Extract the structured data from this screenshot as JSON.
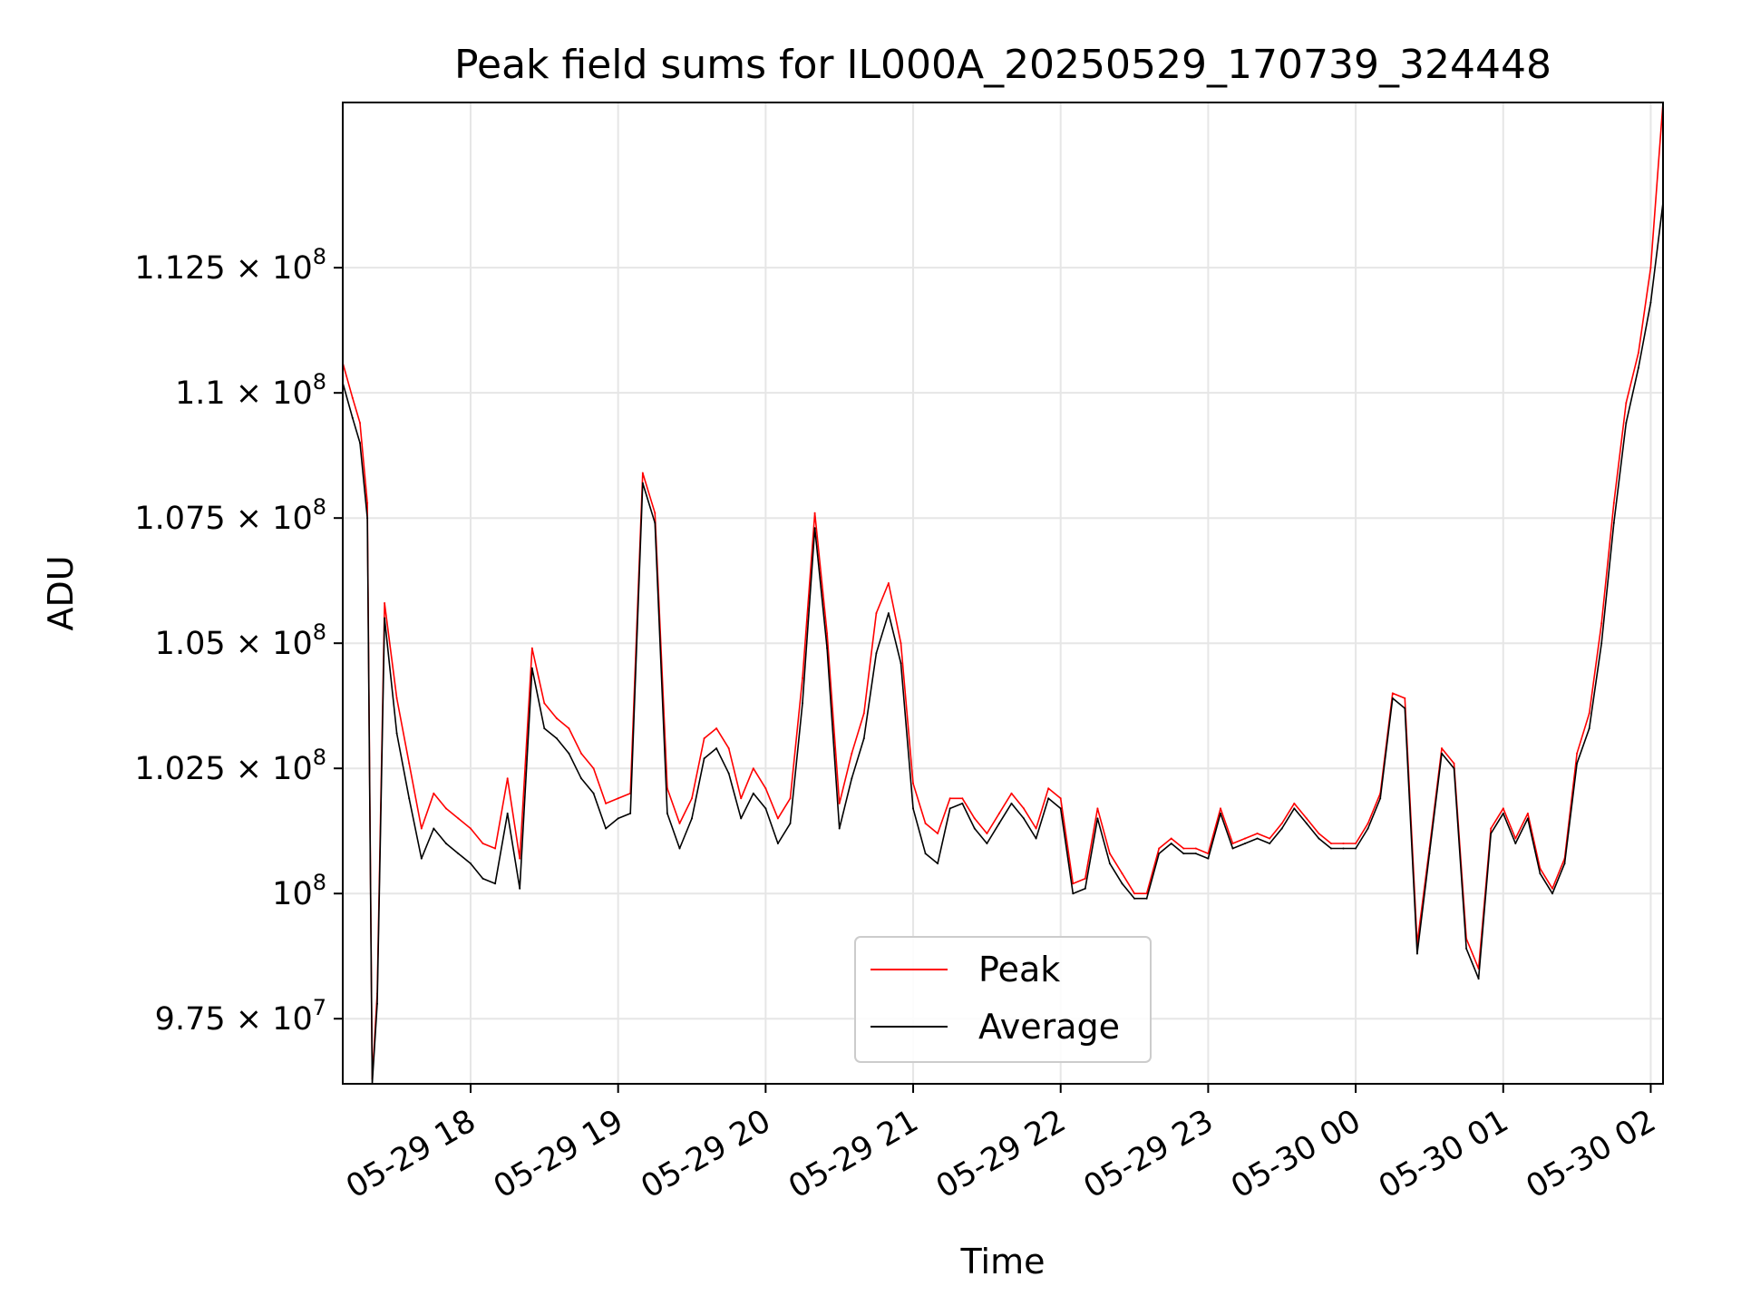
{
  "chart_data": {
    "type": "line",
    "title": "Peak field sums for IL000A_20250529_170739_324448",
    "xlabel": "Time",
    "ylabel": "ADU",
    "x_type": "datetime",
    "xlim": [
      "2025-05-29 17:08",
      "2025-05-30 02:05"
    ],
    "ylim": [
      96200000,
      115800000
    ],
    "x_ticks": [
      {
        "value": "2025-05-29 18:00",
        "label": "05-29 18"
      },
      {
        "value": "2025-05-29 19:00",
        "label": "05-29 19"
      },
      {
        "value": "2025-05-29 20:00",
        "label": "05-29 20"
      },
      {
        "value": "2025-05-29 21:00",
        "label": "05-29 21"
      },
      {
        "value": "2025-05-29 22:00",
        "label": "05-29 22"
      },
      {
        "value": "2025-05-29 23:00",
        "label": "05-29 23"
      },
      {
        "value": "2025-05-30 00:00",
        "label": "05-30 00"
      },
      {
        "value": "2025-05-30 01:00",
        "label": "05-30 01"
      },
      {
        "value": "2025-05-30 02:00",
        "label": "05-30 02"
      }
    ],
    "y_ticks": [
      {
        "value": 97500000,
        "mantissa": "9.75",
        "exp": "7"
      },
      {
        "value": 100000000,
        "mantissa": "",
        "exp": "8"
      },
      {
        "value": 102500000,
        "mantissa": "1.025",
        "exp": "8"
      },
      {
        "value": 105000000,
        "mantissa": "1.05",
        "exp": "8"
      },
      {
        "value": 107500000,
        "mantissa": "1.075",
        "exp": "8"
      },
      {
        "value": 110000000,
        "mantissa": "1.1",
        "exp": "8"
      },
      {
        "value": 112500000,
        "mantissa": "1.125",
        "exp": "8"
      }
    ],
    "grid": true,
    "legend_position": "bottom-center",
    "series": [
      {
        "name": "Peak",
        "color": "#ff0000",
        "x": [
          "2025-05-29 17:08",
          "2025-05-29 17:12",
          "2025-05-29 17:15",
          "2025-05-29 17:18",
          "2025-05-29 17:20",
          "2025-05-29 17:22",
          "2025-05-29 17:25",
          "2025-05-29 17:30",
          "2025-05-29 17:35",
          "2025-05-29 17:40",
          "2025-05-29 17:45",
          "2025-05-29 17:50",
          "2025-05-29 17:55",
          "2025-05-29 18:00",
          "2025-05-29 18:05",
          "2025-05-29 18:10",
          "2025-05-29 18:15",
          "2025-05-29 18:20",
          "2025-05-29 18:25",
          "2025-05-29 18:30",
          "2025-05-29 18:35",
          "2025-05-29 18:40",
          "2025-05-29 18:45",
          "2025-05-29 18:50",
          "2025-05-29 18:55",
          "2025-05-29 19:00",
          "2025-05-29 19:05",
          "2025-05-29 19:10",
          "2025-05-29 19:15",
          "2025-05-29 19:20",
          "2025-05-29 19:25",
          "2025-05-29 19:30",
          "2025-05-29 19:35",
          "2025-05-29 19:40",
          "2025-05-29 19:45",
          "2025-05-29 19:50",
          "2025-05-29 19:55",
          "2025-05-29 20:00",
          "2025-05-29 20:05",
          "2025-05-29 20:10",
          "2025-05-29 20:15",
          "2025-05-29 20:20",
          "2025-05-29 20:25",
          "2025-05-29 20:30",
          "2025-05-29 20:35",
          "2025-05-29 20:40",
          "2025-05-29 20:45",
          "2025-05-29 20:50",
          "2025-05-29 20:55",
          "2025-05-29 21:00",
          "2025-05-29 21:05",
          "2025-05-29 21:10",
          "2025-05-29 21:15",
          "2025-05-29 21:20",
          "2025-05-29 21:25",
          "2025-05-29 21:30",
          "2025-05-29 21:35",
          "2025-05-29 21:40",
          "2025-05-29 21:45",
          "2025-05-29 21:50",
          "2025-05-29 21:55",
          "2025-05-29 22:00",
          "2025-05-29 22:05",
          "2025-05-29 22:10",
          "2025-05-29 22:15",
          "2025-05-29 22:20",
          "2025-05-29 22:25",
          "2025-05-29 22:30",
          "2025-05-29 22:35",
          "2025-05-29 22:40",
          "2025-05-29 22:45",
          "2025-05-29 22:50",
          "2025-05-29 22:55",
          "2025-05-29 23:00",
          "2025-05-29 23:05",
          "2025-05-29 23:10",
          "2025-05-29 23:15",
          "2025-05-29 23:20",
          "2025-05-29 23:25",
          "2025-05-29 23:30",
          "2025-05-29 23:35",
          "2025-05-29 23:40",
          "2025-05-29 23:45",
          "2025-05-29 23:50",
          "2025-05-29 23:55",
          "2025-05-30 00:00",
          "2025-05-30 00:05",
          "2025-05-30 00:10",
          "2025-05-30 00:15",
          "2025-05-30 00:20",
          "2025-05-30 00:25",
          "2025-05-30 00:30",
          "2025-05-30 00:35",
          "2025-05-30 00:40",
          "2025-05-30 00:45",
          "2025-05-30 00:50",
          "2025-05-30 00:55",
          "2025-05-30 01:00",
          "2025-05-30 01:05",
          "2025-05-30 01:10",
          "2025-05-30 01:15",
          "2025-05-30 01:20",
          "2025-05-30 01:25",
          "2025-05-30 01:30",
          "2025-05-30 01:35",
          "2025-05-30 01:40",
          "2025-05-30 01:45",
          "2025-05-30 01:50",
          "2025-05-30 01:55",
          "2025-05-30 02:00",
          "2025-05-30 02:05"
        ],
        "y": [
          110600000,
          109900000,
          109400000,
          107800000,
          96300000,
          98000000,
          105800000,
          103900000,
          102600000,
          101300000,
          102000000,
          101700000,
          101500000,
          101300000,
          101000000,
          100900000,
          102300000,
          100700000,
          104900000,
          103800000,
          103500000,
          103300000,
          102800000,
          102500000,
          101800000,
          101900000,
          102000000,
          108400000,
          107600000,
          102100000,
          101400000,
          101900000,
          103100000,
          103300000,
          102900000,
          101900000,
          102500000,
          102100000,
          101500000,
          101900000,
          104300000,
          107600000,
          105200000,
          101800000,
          102800000,
          103600000,
          105600000,
          106200000,
          105000000,
          102200000,
          101400000,
          101200000,
          101900000,
          101900000,
          101500000,
          101200000,
          101600000,
          102000000,
          101700000,
          101300000,
          102100000,
          101900000,
          100200000,
          100300000,
          101700000,
          100800000,
          100400000,
          100000000,
          100000000,
          100900000,
          101100000,
          100900000,
          100900000,
          100800000,
          101700000,
          101000000,
          101100000,
          101200000,
          101100000,
          101400000,
          101800000,
          101500000,
          101200000,
          101000000,
          101000000,
          101000000,
          101400000,
          102000000,
          104000000,
          103900000,
          99000000,
          100900000,
          102900000,
          102600000,
          99100000,
          98500000,
          101300000,
          101700000,
          101100000,
          101600000,
          100500000,
          100100000,
          100700000,
          102800000,
          103600000,
          105400000,
          107800000,
          109800000,
          110800000,
          112500000,
          115800000
        ]
      },
      {
        "name": "Average",
        "color": "#000000",
        "x": [
          "2025-05-29 17:08",
          "2025-05-29 17:12",
          "2025-05-29 17:15",
          "2025-05-29 17:18",
          "2025-05-29 17:20",
          "2025-05-29 17:22",
          "2025-05-29 17:25",
          "2025-05-29 17:30",
          "2025-05-29 17:35",
          "2025-05-29 17:40",
          "2025-05-29 17:45",
          "2025-05-29 17:50",
          "2025-05-29 17:55",
          "2025-05-29 18:00",
          "2025-05-29 18:05",
          "2025-05-29 18:10",
          "2025-05-29 18:15",
          "2025-05-29 18:20",
          "2025-05-29 18:25",
          "2025-05-29 18:30",
          "2025-05-29 18:35",
          "2025-05-29 18:40",
          "2025-05-29 18:45",
          "2025-05-29 18:50",
          "2025-05-29 18:55",
          "2025-05-29 19:00",
          "2025-05-29 19:05",
          "2025-05-29 19:10",
          "2025-05-29 19:15",
          "2025-05-29 19:20",
          "2025-05-29 19:25",
          "2025-05-29 19:30",
          "2025-05-29 19:35",
          "2025-05-29 19:40",
          "2025-05-29 19:45",
          "2025-05-29 19:50",
          "2025-05-29 19:55",
          "2025-05-29 20:00",
          "2025-05-29 20:05",
          "2025-05-29 20:10",
          "2025-05-29 20:15",
          "2025-05-29 20:20",
          "2025-05-29 20:25",
          "2025-05-29 20:30",
          "2025-05-29 20:35",
          "2025-05-29 20:40",
          "2025-05-29 20:45",
          "2025-05-29 20:50",
          "2025-05-29 20:55",
          "2025-05-29 21:00",
          "2025-05-29 21:05",
          "2025-05-29 21:10",
          "2025-05-29 21:15",
          "2025-05-29 21:20",
          "2025-05-29 21:25",
          "2025-05-29 21:30",
          "2025-05-29 21:35",
          "2025-05-29 21:40",
          "2025-05-29 21:45",
          "2025-05-29 21:50",
          "2025-05-29 21:55",
          "2025-05-29 22:00",
          "2025-05-29 22:05",
          "2025-05-29 22:10",
          "2025-05-29 22:15",
          "2025-05-29 22:20",
          "2025-05-29 22:25",
          "2025-05-29 22:30",
          "2025-05-29 22:35",
          "2025-05-29 22:40",
          "2025-05-29 22:45",
          "2025-05-29 22:50",
          "2025-05-29 22:55",
          "2025-05-29 23:00",
          "2025-05-29 23:05",
          "2025-05-29 23:10",
          "2025-05-29 23:15",
          "2025-05-29 23:20",
          "2025-05-29 23:25",
          "2025-05-29 23:30",
          "2025-05-29 23:35",
          "2025-05-29 23:40",
          "2025-05-29 23:45",
          "2025-05-29 23:50",
          "2025-05-29 23:55",
          "2025-05-30 00:00",
          "2025-05-30 00:05",
          "2025-05-30 00:10",
          "2025-05-30 00:15",
          "2025-05-30 00:20",
          "2025-05-30 00:25",
          "2025-05-30 00:30",
          "2025-05-30 00:35",
          "2025-05-30 00:40",
          "2025-05-30 00:45",
          "2025-05-30 00:50",
          "2025-05-30 00:55",
          "2025-05-30 01:00",
          "2025-05-30 01:05",
          "2025-05-30 01:10",
          "2025-05-30 01:15",
          "2025-05-30 01:20",
          "2025-05-30 01:25",
          "2025-05-30 01:30",
          "2025-05-30 01:35",
          "2025-05-30 01:40",
          "2025-05-30 01:45",
          "2025-05-30 01:50",
          "2025-05-30 01:55",
          "2025-05-30 02:00",
          "2025-05-30 02:05"
        ],
        "y": [
          110200000,
          109500000,
          109000000,
          107500000,
          96200000,
          97800000,
          105500000,
          103200000,
          101900000,
          100700000,
          101300000,
          101000000,
          100800000,
          100600000,
          100300000,
          100200000,
          101600000,
          100100000,
          104500000,
          103300000,
          103100000,
          102800000,
          102300000,
          102000000,
          101300000,
          101500000,
          101600000,
          108200000,
          107400000,
          101600000,
          100900000,
          101500000,
          102700000,
          102900000,
          102400000,
          101500000,
          102000000,
          101700000,
          101000000,
          101400000,
          103800000,
          107300000,
          104900000,
          101300000,
          102300000,
          103100000,
          104800000,
          105600000,
          104600000,
          101700000,
          100800000,
          100600000,
          101700000,
          101800000,
          101300000,
          101000000,
          101400000,
          101800000,
          101500000,
          101100000,
          101900000,
          101700000,
          100000000,
          100100000,
          101500000,
          100600000,
          100200000,
          99900000,
          99900000,
          100800000,
          101000000,
          100800000,
          100800000,
          100700000,
          101600000,
          100900000,
          101000000,
          101100000,
          101000000,
          101300000,
          101700000,
          101400000,
          101100000,
          100900000,
          100900000,
          100900000,
          101300000,
          101900000,
          103900000,
          103700000,
          98800000,
          100800000,
          102800000,
          102500000,
          98900000,
          98300000,
          101200000,
          101600000,
          101000000,
          101500000,
          100400000,
          100000000,
          100600000,
          102600000,
          103300000,
          105000000,
          107400000,
          109400000,
          110500000,
          111800000,
          113800000
        ]
      }
    ]
  }
}
